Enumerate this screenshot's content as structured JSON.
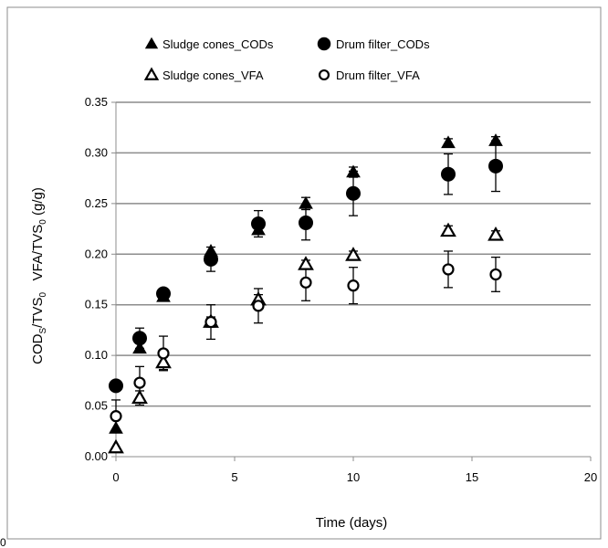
{
  "chart_data": {
    "type": "scatter",
    "title": "",
    "xlabel": "Time (days)",
    "ylabel": {
      "part1": "COD",
      "sub1": "S",
      "part2": "/TVS",
      "sub2": "0",
      "part3": "   VFA/TVS",
      "sub3": "0",
      "part4": " (g/g)"
    },
    "xlim": [
      0,
      20
    ],
    "ylim": [
      0,
      0.35
    ],
    "x_ticks": [
      "0",
      "5",
      "10",
      "15",
      "20"
    ],
    "y_ticks": [
      "0.00",
      "0.05",
      "0.10",
      "0.15",
      "0.20",
      "0.25",
      "0.30",
      "0.35"
    ],
    "grid": "horizontal",
    "legend_position": "top-left",
    "series": [
      {
        "name": "Sludge cones_CODs",
        "marker": "triangle",
        "fill": "filled",
        "points": [
          {
            "x": 0,
            "y": 0.028,
            "err": 0
          },
          {
            "x": 1,
            "y": 0.107,
            "err": 0
          },
          {
            "x": 2,
            "y": 0.158,
            "err": 0
          },
          {
            "x": 4,
            "y": 0.203,
            "err": 0
          },
          {
            "x": 6,
            "y": 0.224,
            "err": 0
          },
          {
            "x": 8,
            "y": 0.25,
            "err": 0.006
          },
          {
            "x": 10,
            "y": 0.281,
            "err": 0.005
          },
          {
            "x": 14,
            "y": 0.31,
            "err": 0.004
          },
          {
            "x": 16,
            "y": 0.312,
            "err": 0.004
          }
        ]
      },
      {
        "name": "Drum filter_CODs",
        "marker": "circle",
        "fill": "filled",
        "points": [
          {
            "x": 0,
            "y": 0.07,
            "err": 0
          },
          {
            "x": 1,
            "y": 0.117,
            "err": 0.01
          },
          {
            "x": 2,
            "y": 0.161,
            "err": 0
          },
          {
            "x": 4,
            "y": 0.195,
            "err": 0.012
          },
          {
            "x": 6,
            "y": 0.23,
            "err": 0.013
          },
          {
            "x": 8,
            "y": 0.231,
            "err": 0.017
          },
          {
            "x": 10,
            "y": 0.26,
            "err": 0.022
          },
          {
            "x": 14,
            "y": 0.279,
            "err": 0.02
          },
          {
            "x": 16,
            "y": 0.287,
            "err": 0.025
          }
        ]
      },
      {
        "name": "Sludge cones_VFA",
        "marker": "triangle",
        "fill": "open",
        "points": [
          {
            "x": 0,
            "y": 0.009,
            "err": 0
          },
          {
            "x": 1,
            "y": 0.058,
            "err": 0.007
          },
          {
            "x": 2,
            "y": 0.093,
            "err": 0.007
          },
          {
            "x": 4,
            "y": 0.133,
            "err": 0.005
          },
          {
            "x": 6,
            "y": 0.155,
            "err": 0.005
          },
          {
            "x": 8,
            "y": 0.19,
            "err": 0.004
          },
          {
            "x": 10,
            "y": 0.199,
            "err": 0.004
          },
          {
            "x": 14,
            "y": 0.223,
            "err": 0.005
          },
          {
            "x": 16,
            "y": 0.219,
            "err": 0.004
          }
        ]
      },
      {
        "name": "Drum filter_VFA",
        "marker": "circle",
        "fill": "open",
        "points": [
          {
            "x": 0,
            "y": 0.04,
            "err": 0.016
          },
          {
            "x": 1,
            "y": 0.073,
            "err": 0.016
          },
          {
            "x": 2,
            "y": 0.102,
            "err": 0.017
          },
          {
            "x": 4,
            "y": 0.133,
            "err": 0.017
          },
          {
            "x": 6,
            "y": 0.149,
            "err": 0.017
          },
          {
            "x": 8,
            "y": 0.172,
            "err": 0.018
          },
          {
            "x": 10,
            "y": 0.169,
            "err": 0.018
          },
          {
            "x": 14,
            "y": 0.185,
            "err": 0.018
          },
          {
            "x": 16,
            "y": 0.18,
            "err": 0.017
          }
        ]
      }
    ]
  },
  "stray_text": "0"
}
